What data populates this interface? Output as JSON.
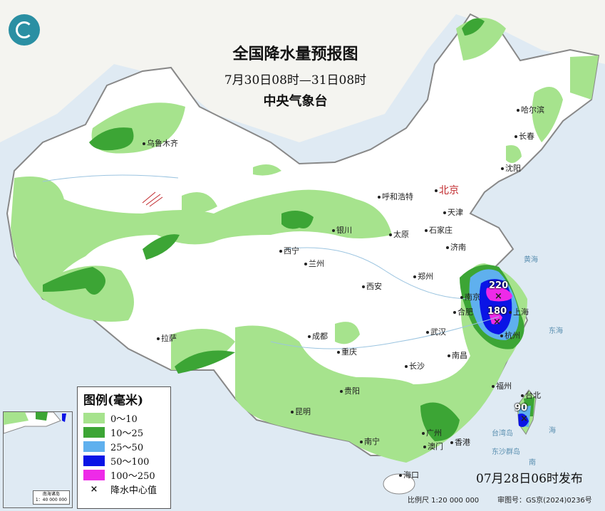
{
  "header": {
    "title": "全国降水量预报图",
    "period": "7月30日08时—31日08时",
    "issuer": "中央气象台"
  },
  "colors": {
    "sea": "#dfeaf3",
    "land": "#ffffff",
    "c0_10": "#a6e38d",
    "c10_25": "#3ca535",
    "c25_50": "#5fb0ee",
    "c50_100": "#0a14e6",
    "c100_250": "#ee2ae8"
  },
  "legend": {
    "title": "图例(毫米)",
    "items": [
      {
        "label": "0～10",
        "color": "#a6e38d"
      },
      {
        "label": "10～25",
        "color": "#3ca535"
      },
      {
        "label": "25～50",
        "color": "#5fb0ee"
      },
      {
        "label": "50～100",
        "color": "#0a14e6"
      },
      {
        "label": "100～250",
        "color": "#ee2ae8"
      },
      {
        "label": "降水中心值",
        "symbol": "×"
      }
    ]
  },
  "cities": [
    "乌鲁木齐",
    "哈尔滨",
    "长春",
    "沈阳",
    "北京",
    "天津",
    "呼和浩特",
    "石家庄",
    "太原",
    "银川",
    "济南",
    "西宁",
    "兰州",
    "郑州",
    "西安",
    "合肥",
    "南京",
    "上海",
    "杭州",
    "武汉",
    "拉萨",
    "成都",
    "重庆",
    "南昌",
    "长沙",
    "福州",
    "台北",
    "贵阳",
    "昆明",
    "广州",
    "香港",
    "澳门",
    "南宁",
    "海口"
  ],
  "peaks": [
    "220",
    "180",
    "90"
  ],
  "seas": [
    "黄海",
    "东海",
    "台湾岛",
    "东沙群岛",
    "南",
    "海"
  ],
  "inset": {
    "caption": "南海诸岛",
    "scale": "1：40 000 000"
  },
  "footer": {
    "issued": "07月28日06时发布",
    "scale": "比例尺 1:20 000 000",
    "review": "审图号：GS京(2024)0236号"
  }
}
